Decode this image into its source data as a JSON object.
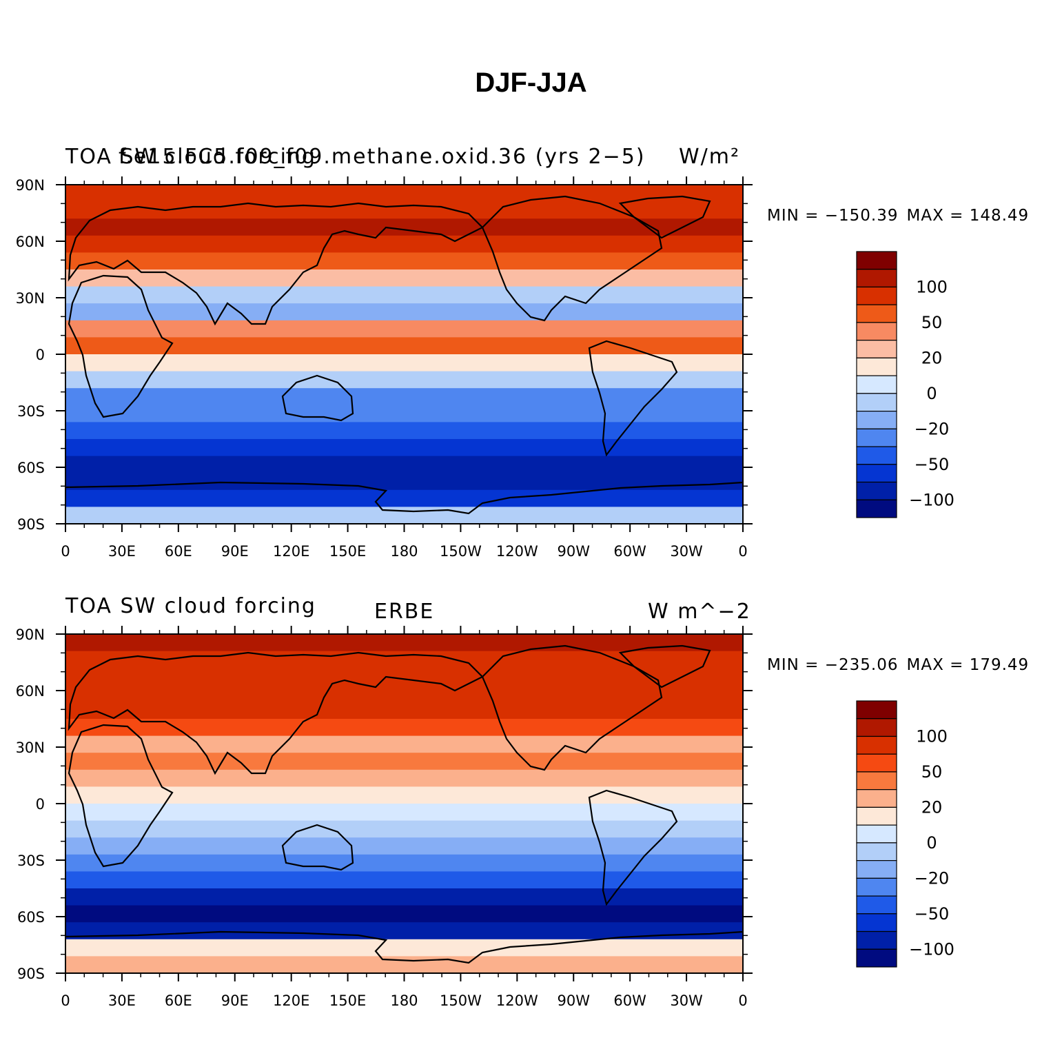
{
  "figure_title": "DJF-JJA",
  "x_ticks": [
    "0",
    "30E",
    "60E",
    "90E",
    "120E",
    "150E",
    "180",
    "150W",
    "120W",
    "90W",
    "60W",
    "30W",
    "0"
  ],
  "y_ticks": [
    "90N",
    "60N",
    "30N",
    "0",
    "30S",
    "60S",
    "90S"
  ],
  "colorbar_labels": [
    "100",
    "50",
    "20",
    "0",
    "−20",
    "−50",
    "−100"
  ],
  "panels": [
    {
      "title_left": "TOA SW cloud forcing",
      "title_overlap": "f.e15.FC5.f09_f09.methane.oxid.36 (yrs 2−5)",
      "title_center": "",
      "title_right": "W/m²",
      "min_label": "MIN = −150.39",
      "max_label": "MAX = 148.49",
      "colors": [
        "#7f0000",
        "#b01800",
        "#d83000",
        "#ee5a18",
        "#f78a62",
        "#fbbda4",
        "#fde8d8",
        "#d6e8ff",
        "#b2cff8",
        "#86aef5",
        "#4f86f0",
        "#1f5ae8",
        "#0535d2",
        "#0020a8",
        "#000b80"
      ]
    },
    {
      "title_left": "TOA SW cloud forcing",
      "title_overlap": "",
      "title_center": "ERBE",
      "title_right": "W m^−2",
      "min_label": "MIN = −235.06",
      "max_label": "MAX = 179.49",
      "colors": [
        "#7f0000",
        "#b01800",
        "#d83000",
        "#f54a12",
        "#f8793e",
        "#fbb08c",
        "#fde8d8",
        "#d6e8ff",
        "#b2cff8",
        "#86aef5",
        "#4f86f0",
        "#1f5ae8",
        "#0535d2",
        "#0020a8",
        "#000b80"
      ]
    }
  ]
}
